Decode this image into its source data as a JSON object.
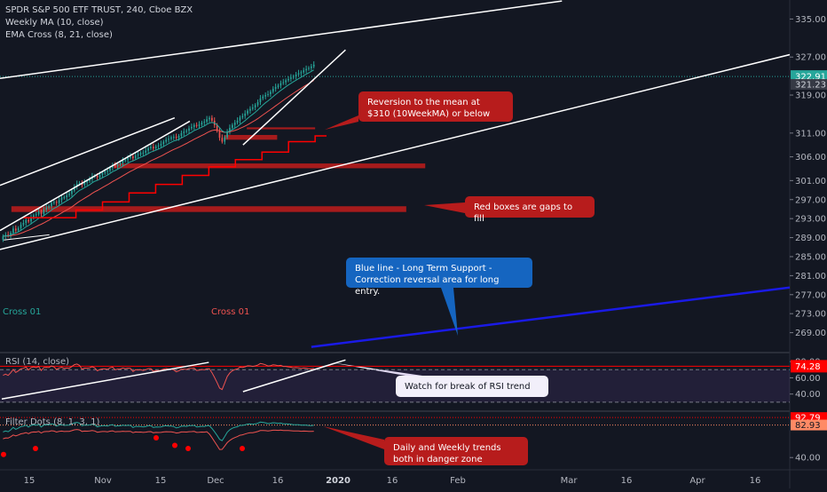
{
  "header": {
    "symbol_line": "SPDR S&P 500 ETF TRUST, 240, Cboe BZX",
    "indicator_1": "Weekly MA (10, close)",
    "indicator_2": "EMA Cross (8, 21, close)"
  },
  "callouts": {
    "reversion": "Reversion to the mean at $310 (10WeekMA) or below",
    "gaps": "Red boxes are gaps to fill",
    "support": "Blue line - Long Term Support - Correction reversal area for long entry.",
    "rsi_trend": "Watch for break of RSI trend",
    "danger": "Daily and Weekly trends both in danger zone"
  },
  "cross_labels": {
    "green": "Cross 01",
    "red": "Cross 01"
  },
  "colors": {
    "background": "#131722",
    "up_candle": "#26a69a",
    "down_candle": "#ef5350",
    "trendline": "#ffffff",
    "support_line": "#1a1ae6",
    "gap_box": "#b71c1c",
    "weekly_ma": "#ff0000",
    "rsi_band": "#7e57c2"
  },
  "chart_data": [
    {
      "type": "candlestick",
      "pane": "price",
      "axis": {
        "ylim": [
          265,
          339
        ],
        "y_ticks": [
          269,
          273,
          277,
          281,
          285,
          289,
          293,
          297,
          301,
          306,
          311,
          319,
          327,
          335
        ],
        "y_tick_labels": [
          "269.00",
          "273.00",
          "277.00",
          "281.00",
          "285.00",
          "289.00",
          "293.00",
          "297.00",
          "301.00",
          "306.00",
          "311.00",
          "319.00",
          "327.00",
          "335.00"
        ],
        "last_price": "322.91",
        "current_price": "321.23"
      },
      "x_ticks": [
        {
          "label": "15",
          "bold": false
        },
        {
          "label": "Nov",
          "bold": false
        },
        {
          "label": "15",
          "bold": false
        },
        {
          "label": "Dec",
          "bold": false
        },
        {
          "label": "16",
          "bold": false
        },
        {
          "label": "2020",
          "bold": true
        },
        {
          "label": "16",
          "bold": false
        },
        {
          "label": "Feb",
          "bold": false
        },
        {
          "label": "Mar",
          "bold": false
        },
        {
          "label": "16",
          "bold": false
        },
        {
          "label": "Apr",
          "bold": false
        },
        {
          "label": "16",
          "bold": false
        }
      ],
      "candles": {
        "start": 288.5,
        "steps": [
          0.8,
          0.3,
          -0.2,
          0.6,
          0.9,
          -0.4,
          0.5,
          0.7,
          0.4,
          0.6,
          -0.3,
          0.8,
          0.5,
          0.2,
          0.6,
          -0.5,
          0.9,
          0.4,
          0.3,
          0.7,
          0.2,
          -0.2,
          0.6,
          0.5,
          0.1,
          0.4,
          0.3,
          0.7,
          0.8,
          0.6,
          0.2,
          -0.4,
          0.5,
          0.3,
          0.4,
          0.6,
          0.1,
          -0.3,
          0.5,
          0.4,
          0.3,
          0.2,
          0.6,
          0.5,
          -0.2,
          0.4,
          0.3,
          0.5,
          0.2,
          0.4,
          0.3,
          -0.4,
          0.6,
          0.2,
          0.3,
          0.1,
          0.4,
          0.5,
          0.3,
          -0.3,
          0.4,
          0.2,
          0.3,
          0.5,
          0.4,
          0.2,
          0.3,
          0.1,
          -0.2,
          0.4,
          0.6,
          0.3,
          0.2,
          0.5,
          0.3,
          0.4,
          -0.2,
          0.3,
          0.4,
          0.2,
          0.5,
          0.3,
          -0.6,
          -0.9,
          -1.2,
          -1.5,
          -0.8,
          0.9,
          1.2,
          0.8,
          0.6,
          0.5,
          0.4,
          0.7,
          0.3,
          0.5,
          0.6,
          0.4,
          0.3,
          0.5,
          0.6,
          0.8,
          0.4,
          0.3,
          0.2,
          0.5,
          0.6,
          0.4,
          0.3,
          0.5,
          0.2,
          0.4,
          0.3,
          0.3,
          0.2,
          0.4,
          0.3,
          0.2,
          0.4,
          0.3,
          0.2,
          0.3,
          0.4
        ]
      },
      "weekly_ma_steps": [
        {
          "x": "2019-10-07",
          "y": 293.2
        },
        {
          "x": "2019-10-21",
          "y": 294.8
        },
        {
          "x": "2019-10-28",
          "y": 296.5
        },
        {
          "x": "2019-11-04",
          "y": 298.4
        },
        {
          "x": "2019-11-11",
          "y": 300.2
        },
        {
          "x": "2019-11-18",
          "y": 302.1
        },
        {
          "x": "2019-11-25",
          "y": 303.9
        },
        {
          "x": "2019-12-02",
          "y": 305.4
        },
        {
          "x": "2019-12-09",
          "y": 307.0
        },
        {
          "x": "2019-12-16",
          "y": 309.2
        },
        {
          "x": "2019-12-23",
          "y": 310.4
        }
      ],
      "gap_boxes": [
        {
          "y_top": 312.2,
          "y_bottom": 311.8,
          "x_start": "2019-12-05",
          "x_end": "2019-12-23"
        },
        {
          "y_top": 310.6,
          "y_bottom": 309.6,
          "x_start": "2019-11-29",
          "x_end": "2019-12-13"
        },
        {
          "y_top": 304.6,
          "y_bottom": 303.6,
          "x_start": "2019-10-31",
          "x_end": "2020-01-21"
        },
        {
          "y_top": 295.6,
          "y_bottom": 294.4,
          "x_start": "2019-10-04",
          "x_end": "2020-01-16"
        }
      ]
    },
    {
      "type": "line",
      "pane": "rsi",
      "title": "RSI (14, close)",
      "y_ticks": [
        40,
        60,
        80
      ],
      "y_tick_labels": [
        "40.00",
        "60.00",
        "80.00"
      ],
      "last_value": "74.28",
      "band": [
        30,
        70
      ]
    },
    {
      "type": "line",
      "pane": "filter_dots",
      "title": "Filter Dots (8, 1, 3, 1)",
      "y_ticks": [
        40
      ],
      "y_tick_labels": [
        "40.00"
      ],
      "value_1": "92.79",
      "value_2": "82.93"
    }
  ]
}
